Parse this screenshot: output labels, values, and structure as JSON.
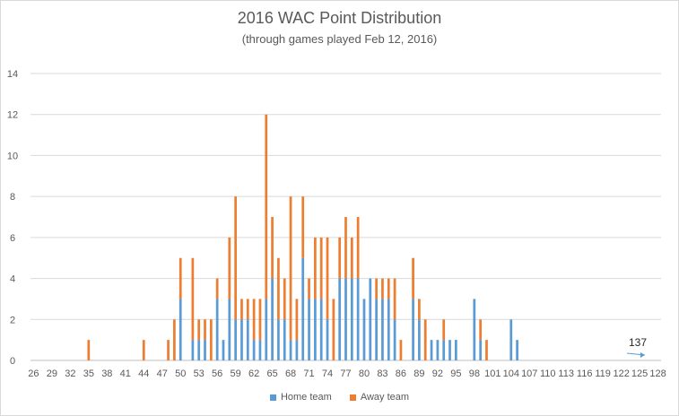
{
  "chart_data": {
    "type": "bar",
    "stacked": true,
    "title": "2016 WAC Point Distribution",
    "subtitle": "(through games played Feb 12, 2016)",
    "xlabel": "",
    "ylabel": "",
    "ylim": [
      0,
      14
    ],
    "y_ticks": [
      0,
      2,
      4,
      6,
      8,
      10,
      12,
      14
    ],
    "x_range": [
      26,
      128
    ],
    "x_tick_labels": [
      26,
      29,
      32,
      35,
      38,
      41,
      44,
      47,
      50,
      53,
      56,
      59,
      62,
      65,
      68,
      71,
      74,
      77,
      80,
      83,
      86,
      89,
      92,
      95,
      98,
      101,
      104,
      107,
      110,
      113,
      116,
      119,
      122,
      125,
      128
    ],
    "grid": true,
    "legend_position": "bottom",
    "series": [
      {
        "name": "Home team",
        "color": "#5b9bd5",
        "points": [
          [
            50,
            3
          ],
          [
            52,
            1
          ],
          [
            53,
            1
          ],
          [
            54,
            1
          ],
          [
            56,
            3
          ],
          [
            57,
            1
          ],
          [
            58,
            3
          ],
          [
            59,
            2
          ],
          [
            60,
            2
          ],
          [
            61,
            2
          ],
          [
            62,
            1
          ],
          [
            63,
            1
          ],
          [
            64,
            3
          ],
          [
            65,
            4
          ],
          [
            66,
            2
          ],
          [
            67,
            2
          ],
          [
            68,
            1
          ],
          [
            69,
            1
          ],
          [
            70,
            5
          ],
          [
            71,
            3
          ],
          [
            72,
            3
          ],
          [
            73,
            3
          ],
          [
            74,
            2
          ],
          [
            76,
            4
          ],
          [
            77,
            4
          ],
          [
            78,
            4
          ],
          [
            79,
            4
          ],
          [
            80,
            3
          ],
          [
            81,
            4
          ],
          [
            82,
            3
          ],
          [
            83,
            3
          ],
          [
            84,
            3
          ],
          [
            85,
            2
          ],
          [
            88,
            3
          ],
          [
            89,
            2
          ],
          [
            91,
            1
          ],
          [
            92,
            1
          ],
          [
            93,
            1
          ],
          [
            94,
            1
          ],
          [
            95,
            1
          ],
          [
            98,
            3
          ],
          [
            99,
            1
          ],
          [
            104,
            2
          ],
          [
            105,
            1
          ]
        ]
      },
      {
        "name": "Away team",
        "color": "#ed7d31",
        "points": [
          [
            35,
            1
          ],
          [
            44,
            1
          ],
          [
            48,
            1
          ],
          [
            49,
            2
          ],
          [
            50,
            2
          ],
          [
            52,
            4
          ],
          [
            53,
            1
          ],
          [
            54,
            1
          ],
          [
            55,
            2
          ],
          [
            56,
            1
          ],
          [
            58,
            3
          ],
          [
            59,
            6
          ],
          [
            60,
            1
          ],
          [
            61,
            1
          ],
          [
            62,
            2
          ],
          [
            63,
            2
          ],
          [
            64,
            9
          ],
          [
            65,
            3
          ],
          [
            66,
            3
          ],
          [
            67,
            2
          ],
          [
            68,
            7
          ],
          [
            69,
            2
          ],
          [
            70,
            3
          ],
          [
            71,
            1
          ],
          [
            72,
            3
          ],
          [
            73,
            3
          ],
          [
            74,
            4
          ],
          [
            75,
            3
          ],
          [
            76,
            2
          ],
          [
            77,
            3
          ],
          [
            78,
            2
          ],
          [
            79,
            3
          ],
          [
            82,
            1
          ],
          [
            83,
            1
          ],
          [
            84,
            1
          ],
          [
            85,
            2
          ],
          [
            86,
            1
          ],
          [
            88,
            2
          ],
          [
            89,
            1
          ],
          [
            90,
            2
          ],
          [
            93,
            1
          ],
          [
            99,
            1
          ],
          [
            100,
            1
          ]
        ]
      }
    ],
    "annotation": {
      "text": "137",
      "arrow_color": "#5b9bd5"
    }
  }
}
